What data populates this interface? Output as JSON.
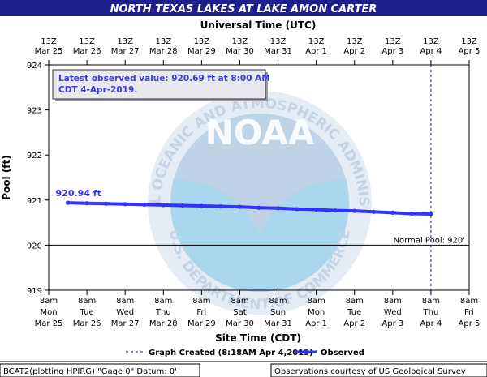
{
  "title": "NORTH TEXAS LAKES AT LAKE AMON CARTER",
  "top_axis_title": "Universal Time (UTC)",
  "bottom_axis_title": "Site Time (CDT)",
  "ylabel": "Pool (ft)",
  "y_ticks": [
    "924",
    "923",
    "922",
    "921",
    "920",
    "919"
  ],
  "utc_ticks": [
    {
      "top": "13Z",
      "bottom": "Mar 25"
    },
    {
      "top": "13Z",
      "bottom": "Mar 26"
    },
    {
      "top": "13Z",
      "bottom": "Mar 27"
    },
    {
      "top": "13Z",
      "bottom": "Mar 28"
    },
    {
      "top": "13Z",
      "bottom": "Mar 29"
    },
    {
      "top": "13Z",
      "bottom": "Mar 30"
    },
    {
      "top": "13Z",
      "bottom": "Mar 31"
    },
    {
      "top": "13Z",
      "bottom": "Apr 1"
    },
    {
      "top": "13Z",
      "bottom": "Apr 2"
    },
    {
      "top": "13Z",
      "bottom": "Apr 3"
    },
    {
      "top": "13Z",
      "bottom": "Apr 4"
    },
    {
      "top": "13Z",
      "bottom": "Apr 5"
    }
  ],
  "site_ticks": [
    {
      "time": "8am",
      "day": "Mon",
      "date": "Mar 25"
    },
    {
      "time": "8am",
      "day": "Tue",
      "date": "Mar 26"
    },
    {
      "time": "8am",
      "day": "Wed",
      "date": "Mar 27"
    },
    {
      "time": "8am",
      "day": "Thu",
      "date": "Mar 28"
    },
    {
      "time": "8am",
      "day": "Fri",
      "date": "Mar 29"
    },
    {
      "time": "8am",
      "day": "Sat",
      "date": "Mar 30"
    },
    {
      "time": "8am",
      "day": "Sun",
      "date": "Mar 31"
    },
    {
      "time": "8am",
      "day": "Mon",
      "date": "Apr 1"
    },
    {
      "time": "8am",
      "day": "Tue",
      "date": "Apr 2"
    },
    {
      "time": "8am",
      "day": "Wed",
      "date": "Apr 3"
    },
    {
      "time": "8am",
      "day": "Thu",
      "date": "Apr 4"
    },
    {
      "time": "8am",
      "day": "Fri",
      "date": "Apr 5"
    }
  ],
  "latest_box_line1": "Latest observed value: 920.69 ft at 8:00 AM",
  "latest_box_line2": "CDT 4-Apr-2019.",
  "start_label": "920.94 ft",
  "normal_pool_label": "Normal Pool: 920'",
  "legend_created": "Graph Created (8:18AM Apr 4,2019)",
  "legend_observed": "Observed",
  "footer_left": "BCAT2(plotting HPIRG) \"Gage 0\" Datum: 0'",
  "footer_right": "Observations courtesy of US Geological Survey",
  "watermark_noaa": "NOAA",
  "watermark_ring": "NATIONAL OCEANIC AND ATMOSPHERIC ADMINISTRATION",
  "watermark_bottom": "U.S. DEPARTMENT OF COMMERCE",
  "colors": {
    "title_bg": "#1e1e8c",
    "title_text": "#ffffff",
    "series": "#3232ff",
    "latest_text": "#3a3ad8",
    "box_bg": "#e8e8ee",
    "normal_line": "#000000",
    "created_line": "#1e1e8c"
  },
  "chart_data": {
    "type": "line",
    "title": "NORTH TEXAS LAKES AT LAKE AMON CARTER",
    "xlabel": "Site Time (CDT)",
    "ylabel": "Pool (ft)",
    "ylim": [
      919,
      924
    ],
    "x_unit": "days since Mar 25 8am CDT",
    "xlim": [
      0,
      11
    ],
    "grid": false,
    "legend_placement": "bottom",
    "normal_pool": 920,
    "graph_created_x": 10,
    "series": [
      {
        "name": "Observed",
        "x": [
          0.5,
          1,
          1.5,
          2,
          2.5,
          3,
          3.5,
          4,
          4.5,
          5,
          5.5,
          6,
          6.5,
          7,
          7.5,
          8,
          8.5,
          9,
          9.5,
          10
        ],
        "values": [
          920.94,
          920.93,
          920.92,
          920.91,
          920.9,
          920.89,
          920.88,
          920.87,
          920.86,
          920.85,
          920.83,
          920.82,
          920.8,
          920.79,
          920.77,
          920.76,
          920.74,
          920.72,
          920.7,
          920.69
        ]
      }
    ]
  }
}
